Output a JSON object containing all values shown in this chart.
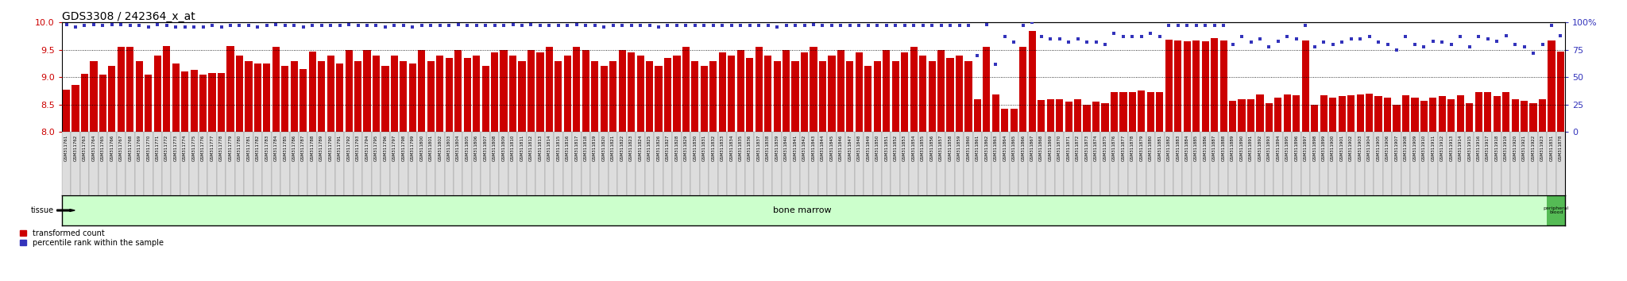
{
  "title": "GDS3308 / 242364_x_at",
  "samples": [
    "GSM311761",
    "GSM311762",
    "GSM311763",
    "GSM311764",
    "GSM311765",
    "GSM311766",
    "GSM311767",
    "GSM311768",
    "GSM311769",
    "GSM311770",
    "GSM311771",
    "GSM311772",
    "GSM311773",
    "GSM311774",
    "GSM311775",
    "GSM311776",
    "GSM311777",
    "GSM311778",
    "GSM311779",
    "GSM311780",
    "GSM311781",
    "GSM311782",
    "GSM311783",
    "GSM311784",
    "GSM311785",
    "GSM311786",
    "GSM311787",
    "GSM311788",
    "GSM311789",
    "GSM311790",
    "GSM311791",
    "GSM311792",
    "GSM311793",
    "GSM311794",
    "GSM311795",
    "GSM311796",
    "GSM311797",
    "GSM311798",
    "GSM311799",
    "GSM311800",
    "GSM311801",
    "GSM311802",
    "GSM311803",
    "GSM311804",
    "GSM311805",
    "GSM311806",
    "GSM311807",
    "GSM311808",
    "GSM311809",
    "GSM311810",
    "GSM311811",
    "GSM311812",
    "GSM311813",
    "GSM311814",
    "GSM311815",
    "GSM311816",
    "GSM311817",
    "GSM311818",
    "GSM311819",
    "GSM311820",
    "GSM311821",
    "GSM311822",
    "GSM311823",
    "GSM311824",
    "GSM311825",
    "GSM311826",
    "GSM311827",
    "GSM311828",
    "GSM311829",
    "GSM311830",
    "GSM311831",
    "GSM311832",
    "GSM311833",
    "GSM311834",
    "GSM311835",
    "GSM311836",
    "GSM311837",
    "GSM311838",
    "GSM311839",
    "GSM311840",
    "GSM311841",
    "GSM311842",
    "GSM311843",
    "GSM311844",
    "GSM311845",
    "GSM311846",
    "GSM311847",
    "GSM311848",
    "GSM311849",
    "GSM311850",
    "GSM311851",
    "GSM311852",
    "GSM311853",
    "GSM311854",
    "GSM311855",
    "GSM311856",
    "GSM311857",
    "GSM311858",
    "GSM311859",
    "GSM311860",
    "GSM311861",
    "GSM311862",
    "GSM311863",
    "GSM311864",
    "GSM311865",
    "GSM311866",
    "GSM311867",
    "GSM311868",
    "GSM311869",
    "GSM311870",
    "GSM311871",
    "GSM311872",
    "GSM311873",
    "GSM311874",
    "GSM311875",
    "GSM311876",
    "GSM311877",
    "GSM311878",
    "GSM311879",
    "GSM311880",
    "GSM311881",
    "GSM311882",
    "GSM311883",
    "GSM311884",
    "GSM311885",
    "GSM311886",
    "GSM311887",
    "GSM311888",
    "GSM311889",
    "GSM311890",
    "GSM311891",
    "GSM311892",
    "GSM311893",
    "GSM311894",
    "GSM311895",
    "GSM311896",
    "GSM311897",
    "GSM311898",
    "GSM311899",
    "GSM311900",
    "GSM311901",
    "GSM311902",
    "GSM311903",
    "GSM311904",
    "GSM311905",
    "GSM311906",
    "GSM311907",
    "GSM311908",
    "GSM311909",
    "GSM311910",
    "GSM311911",
    "GSM311912",
    "GSM311913",
    "GSM311914",
    "GSM311915",
    "GSM311916",
    "GSM311917",
    "GSM311918",
    "GSM311919",
    "GSM311920",
    "GSM311921",
    "GSM311922",
    "GSM311923",
    "GSM311831",
    "GSM311878"
  ],
  "bar_values": [
    8.77,
    8.85,
    9.06,
    9.3,
    9.05,
    9.2,
    9.55,
    9.55,
    9.3,
    9.05,
    9.4,
    9.57,
    9.25,
    9.1,
    9.13,
    9.05,
    9.08,
    9.08,
    9.57,
    9.4,
    9.3,
    9.25,
    9.25,
    9.55,
    9.2,
    9.3,
    9.15,
    9.47,
    9.3,
    9.4,
    9.25,
    9.5,
    9.3,
    9.5,
    9.4,
    9.2,
    9.4,
    9.3,
    9.25,
    9.5,
    9.3,
    9.4,
    9.35,
    9.5,
    9.35,
    9.4,
    9.2,
    9.45,
    9.5,
    9.4,
    9.3,
    9.5,
    9.45,
    9.55,
    9.3,
    9.4,
    9.55,
    9.5,
    9.3,
    9.2,
    9.3,
    9.5,
    9.45,
    9.4,
    9.3,
    9.2,
    9.35,
    9.4,
    9.55,
    9.3,
    9.2,
    9.3,
    9.45,
    9.4,
    9.5,
    9.35,
    9.55,
    9.4,
    9.3,
    9.5,
    9.3,
    9.45,
    9.55,
    9.3,
    9.4,
    9.5,
    9.3,
    9.45,
    9.2,
    9.3,
    9.5,
    9.3,
    9.45,
    9.55,
    9.4,
    9.3,
    9.5,
    9.35,
    9.4,
    9.3,
    8.6,
    9.55,
    8.68,
    8.42,
    8.42,
    9.55,
    9.85,
    8.58,
    8.6,
    8.6,
    8.55,
    8.6,
    8.5,
    8.55,
    8.52,
    8.72,
    8.72,
    8.73,
    8.75,
    8.73,
    8.73,
    9.68,
    9.67,
    9.66,
    9.67,
    9.65,
    9.72,
    9.67,
    8.56,
    8.6,
    8.6,
    8.68,
    8.52,
    8.63,
    8.68,
    8.67,
    9.67,
    8.5,
    8.67,
    8.63,
    8.65,
    8.67,
    8.68,
    8.7,
    8.65,
    8.62,
    8.5,
    8.67,
    8.63,
    8.57,
    8.62,
    8.65,
    8.6,
    8.67,
    8.52,
    8.72,
    8.72,
    8.65,
    8.73,
    8.6,
    8.57,
    8.52,
    8.6,
    9.67,
    9.47
  ],
  "dot_values": [
    98,
    96,
    97,
    98,
    97,
    98,
    98,
    97,
    97,
    96,
    98,
    97,
    96,
    96,
    96,
    96,
    97,
    96,
    97,
    97,
    97,
    96,
    97,
    98,
    97,
    97,
    96,
    97,
    97,
    97,
    97,
    98,
    97,
    97,
    97,
    96,
    97,
    97,
    96,
    97,
    97,
    97,
    97,
    98,
    97,
    97,
    97,
    97,
    97,
    98,
    97,
    98,
    97,
    97,
    97,
    97,
    98,
    97,
    97,
    96,
    97,
    97,
    97,
    97,
    97,
    96,
    97,
    97,
    97,
    97,
    97,
    97,
    97,
    97,
    97,
    97,
    97,
    97,
    96,
    97,
    97,
    97,
    98,
    97,
    97,
    97,
    97,
    97,
    97,
    97,
    97,
    97,
    97,
    97,
    97,
    97,
    97,
    97,
    97,
    97,
    70,
    98,
    62,
    87,
    82,
    97,
    100,
    87,
    85,
    85,
    82,
    85,
    82,
    82,
    80,
    90,
    87,
    87,
    87,
    90,
    87,
    97,
    97,
    97,
    97,
    97,
    97,
    97,
    80,
    87,
    82,
    85,
    78,
    83,
    87,
    85,
    97,
    78,
    82,
    80,
    82,
    85,
    85,
    87,
    82,
    80,
    75,
    87,
    80,
    78,
    83,
    82,
    80,
    87,
    78,
    87,
    85,
    83,
    88,
    80,
    78,
    72,
    80,
    97,
    88
  ],
  "bar_color": "#cc0000",
  "dot_color": "#3333bb",
  "ylim_left": [
    8.0,
    10.0
  ],
  "ylim_right": [
    0,
    100
  ],
  "yticks_left": [
    8.0,
    8.5,
    9.0,
    9.5,
    10.0
  ],
  "yticks_right": [
    0,
    25,
    50,
    75,
    100
  ],
  "yticklabels_right": [
    "0",
    "25",
    "50",
    "75",
    "100%"
  ],
  "tissue_label": "tissue",
  "bone_marrow_label": "bone marrow",
  "peripheral_blood_label": "peripheral\nblood",
  "tissue_color": "#ccffcc",
  "peripheral_blood_color": "#55bb55",
  "legend_transformed": "transformed count",
  "legend_percentile": "percentile rank within the sample",
  "n_samples": 165,
  "n_peripheral": 2,
  "xtick_box_color": "#dddddd",
  "xtick_box_border": "#888888"
}
